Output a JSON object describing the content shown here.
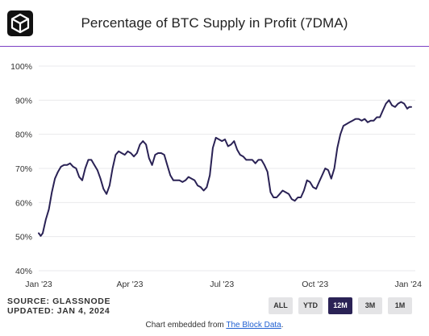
{
  "header": {
    "title": "Percentage of BTC Supply in Profit (7DMA)"
  },
  "footer": {
    "source": "SOURCE: GLASSNODE",
    "updated": "UPDATED: JAN 4, 2024",
    "embed_prefix": "Chart embedded from ",
    "embed_link": "The Block Data",
    "embed_suffix": "."
  },
  "range_buttons": [
    {
      "label": "ALL",
      "active": false
    },
    {
      "label": "YTD",
      "active": false
    },
    {
      "label": "12M",
      "active": true
    },
    {
      "label": "3M",
      "active": false
    },
    {
      "label": "1M",
      "active": false
    }
  ],
  "colors": {
    "line": "#2a2255",
    "accent_rule": "#7b3fc4",
    "active_button": "#2a2255"
  },
  "chart_data": {
    "type": "line",
    "title": "Percentage of BTC Supply in Profit (7DMA)",
    "xlabel": "",
    "ylabel": "",
    "ylim": [
      40,
      100
    ],
    "y_ticks": [
      40,
      50,
      60,
      70,
      80,
      90,
      100
    ],
    "y_tick_labels": [
      "40%",
      "50%",
      "60%",
      "70%",
      "80%",
      "90%",
      "100%"
    ],
    "xlim": [
      "2023-01-01",
      "2024-01-08"
    ],
    "x_ticks": [
      "2023-01-01",
      "2023-04-01",
      "2023-07-01",
      "2023-10-01",
      "2024-01-01"
    ],
    "x_tick_labels": [
      "Jan '23",
      "Apr '23",
      "Jul '23",
      "Oct '23",
      "Jan '24"
    ],
    "grid": true,
    "series": [
      {
        "values": [
          [
            "2023-01-01",
            51
          ],
          [
            "2023-01-03",
            50.2
          ],
          [
            "2023-01-05",
            51
          ],
          [
            "2023-01-08",
            55
          ],
          [
            "2023-01-11",
            58
          ],
          [
            "2023-01-14",
            63
          ],
          [
            "2023-01-17",
            67
          ],
          [
            "2023-01-20",
            69
          ],
          [
            "2023-01-23",
            70.5
          ],
          [
            "2023-01-26",
            71
          ],
          [
            "2023-01-29",
            71
          ],
          [
            "2023-02-01",
            71.5
          ],
          [
            "2023-02-04",
            70.5
          ],
          [
            "2023-02-07",
            70
          ],
          [
            "2023-02-10",
            67.5
          ],
          [
            "2023-02-13",
            66.5
          ],
          [
            "2023-02-16",
            70
          ],
          [
            "2023-02-19",
            72.5
          ],
          [
            "2023-02-22",
            72.5
          ],
          [
            "2023-02-25",
            71
          ],
          [
            "2023-02-28",
            69.5
          ],
          [
            "2023-03-03",
            67
          ],
          [
            "2023-03-06",
            64
          ],
          [
            "2023-03-09",
            62.5
          ],
          [
            "2023-03-12",
            65
          ],
          [
            "2023-03-15",
            70
          ],
          [
            "2023-03-18",
            74
          ],
          [
            "2023-03-21",
            75
          ],
          [
            "2023-03-24",
            74.5
          ],
          [
            "2023-03-27",
            74
          ],
          [
            "2023-03-30",
            75
          ],
          [
            "2023-04-02",
            74.5
          ],
          [
            "2023-04-05",
            73.5
          ],
          [
            "2023-04-08",
            74.5
          ],
          [
            "2023-04-11",
            77
          ],
          [
            "2023-04-14",
            78
          ],
          [
            "2023-04-17",
            77
          ],
          [
            "2023-04-20",
            73
          ],
          [
            "2023-04-23",
            71
          ],
          [
            "2023-04-26",
            74
          ],
          [
            "2023-04-29",
            74.5
          ],
          [
            "2023-05-02",
            74.5
          ],
          [
            "2023-05-05",
            74
          ],
          [
            "2023-05-08",
            71
          ],
          [
            "2023-05-11",
            68
          ],
          [
            "2023-05-14",
            66.5
          ],
          [
            "2023-05-17",
            66.5
          ],
          [
            "2023-05-20",
            66.5
          ],
          [
            "2023-05-23",
            66
          ],
          [
            "2023-05-26",
            66.5
          ],
          [
            "2023-05-29",
            67.5
          ],
          [
            "2023-06-01",
            67
          ],
          [
            "2023-06-04",
            66.5
          ],
          [
            "2023-06-07",
            65
          ],
          [
            "2023-06-10",
            64.5
          ],
          [
            "2023-06-13",
            63.5
          ],
          [
            "2023-06-16",
            64.5
          ],
          [
            "2023-06-19",
            68
          ],
          [
            "2023-06-22",
            76
          ],
          [
            "2023-06-25",
            79
          ],
          [
            "2023-06-28",
            78.5
          ],
          [
            "2023-07-01",
            78
          ],
          [
            "2023-07-04",
            78.5
          ],
          [
            "2023-07-07",
            76.5
          ],
          [
            "2023-07-10",
            77
          ],
          [
            "2023-07-13",
            78
          ],
          [
            "2023-07-16",
            75.5
          ],
          [
            "2023-07-19",
            74
          ],
          [
            "2023-07-22",
            73.5
          ],
          [
            "2023-07-25",
            72.5
          ],
          [
            "2023-07-28",
            72.5
          ],
          [
            "2023-07-31",
            72.5
          ],
          [
            "2023-08-03",
            71.5
          ],
          [
            "2023-08-06",
            72.5
          ],
          [
            "2023-08-09",
            72.5
          ],
          [
            "2023-08-12",
            71
          ],
          [
            "2023-08-15",
            69
          ],
          [
            "2023-08-18",
            63
          ],
          [
            "2023-08-21",
            61.5
          ],
          [
            "2023-08-24",
            61.5
          ],
          [
            "2023-08-27",
            62.5
          ],
          [
            "2023-08-30",
            63.5
          ],
          [
            "2023-09-02",
            63
          ],
          [
            "2023-09-05",
            62.5
          ],
          [
            "2023-09-08",
            61
          ],
          [
            "2023-09-11",
            60.5
          ],
          [
            "2023-09-14",
            61.5
          ],
          [
            "2023-09-17",
            61.5
          ],
          [
            "2023-09-20",
            63.5
          ],
          [
            "2023-09-23",
            66.5
          ],
          [
            "2023-09-26",
            66
          ],
          [
            "2023-09-29",
            64.5
          ],
          [
            "2023-10-02",
            64
          ],
          [
            "2023-10-05",
            66
          ],
          [
            "2023-10-08",
            68
          ],
          [
            "2023-10-11",
            70
          ],
          [
            "2023-10-14",
            69.5
          ],
          [
            "2023-10-17",
            67
          ],
          [
            "2023-10-20",
            70
          ],
          [
            "2023-10-23",
            76
          ],
          [
            "2023-10-26",
            80
          ],
          [
            "2023-10-29",
            82.5
          ],
          [
            "2023-11-01",
            83
          ],
          [
            "2023-11-04",
            83.5
          ],
          [
            "2023-11-07",
            84
          ],
          [
            "2023-11-10",
            84.5
          ],
          [
            "2023-11-13",
            84.5
          ],
          [
            "2023-11-16",
            84
          ],
          [
            "2023-11-19",
            84.5
          ],
          [
            "2023-11-22",
            83.5
          ],
          [
            "2023-11-25",
            84
          ],
          [
            "2023-11-28",
            84
          ],
          [
            "2023-12-01",
            85
          ],
          [
            "2023-12-04",
            85
          ],
          [
            "2023-12-07",
            87
          ],
          [
            "2023-12-10",
            89
          ],
          [
            "2023-12-13",
            90
          ],
          [
            "2023-12-16",
            88.5
          ],
          [
            "2023-12-19",
            88
          ],
          [
            "2023-12-22",
            89
          ],
          [
            "2023-12-25",
            89.5
          ],
          [
            "2023-12-28",
            89
          ],
          [
            "2023-12-31",
            87.5
          ],
          [
            "2024-01-02",
            88
          ],
          [
            "2024-01-04",
            88
          ]
        ]
      }
    ]
  }
}
